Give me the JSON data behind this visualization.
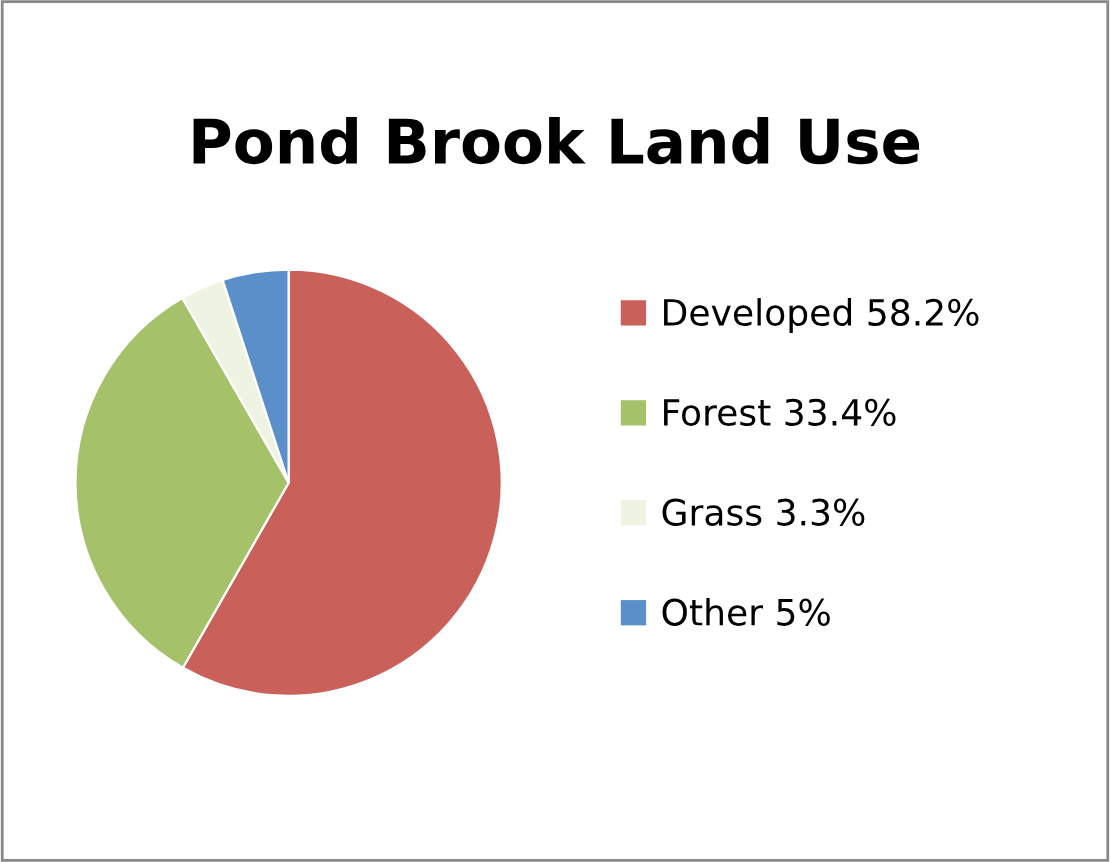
{
  "chart_data": {
    "type": "pie",
    "title": "Pond Brook Land Use",
    "categories": [
      "Developed 58.2%",
      "Forest 33.4%",
      "Grass 3.3%",
      "Other 5%"
    ],
    "values": [
      58.2,
      33.4,
      3.3,
      5
    ],
    "colors": [
      "#c9605a",
      "#a5c26a",
      "#eef3e2",
      "#5b8fc9"
    ],
    "legend": "right"
  }
}
